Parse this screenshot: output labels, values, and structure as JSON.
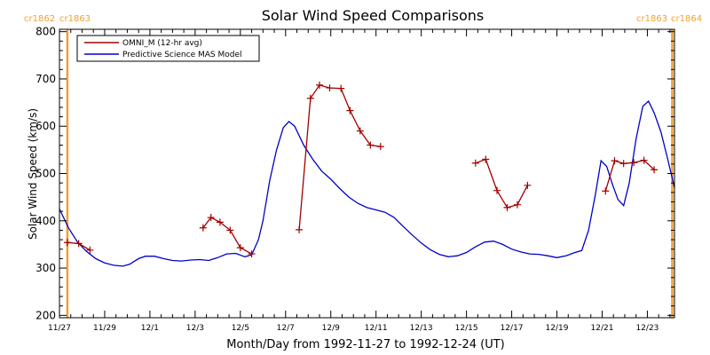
{
  "chart_data": {
    "type": "line",
    "title": "Solar Wind Speed Comparisons",
    "xlabel": "Month/Day from 1992-11-27 to 1992-12-24 (UT)",
    "ylabel": "Solar Wind Speed (km/s)",
    "xlim": [
      0,
      27.2
    ],
    "ylim": [
      195,
      805
    ],
    "yticks": [
      200,
      300,
      400,
      500,
      600,
      700,
      800
    ],
    "xticks": [
      {
        "x": 0,
        "label": "11/27"
      },
      {
        "x": 2,
        "label": "11/29"
      },
      {
        "x": 4,
        "label": "12/1"
      },
      {
        "x": 6,
        "label": "12/3"
      },
      {
        "x": 8,
        "label": "12/5"
      },
      {
        "x": 10,
        "label": "12/7"
      },
      {
        "x": 12,
        "label": "12/9"
      },
      {
        "x": 14,
        "label": "12/11"
      },
      {
        "x": 16,
        "label": "12/13"
      },
      {
        "x": 18,
        "label": "12/15"
      },
      {
        "x": 20,
        "label": "12/17"
      },
      {
        "x": 22,
        "label": "12/19"
      },
      {
        "x": 24,
        "label": "12/21"
      },
      {
        "x": 26,
        "label": "12/23"
      }
    ],
    "rotation_markers": [
      {
        "x": 0.35,
        "left_label": "cr1862",
        "right_label": "cr1863"
      },
      {
        "x": 27.1,
        "left_label": "cr1863",
        "right_label": "cr1864"
      }
    ],
    "legend": {
      "position": "top-left"
    },
    "colors": {
      "omni": "#a00000",
      "mas": "#0000cc",
      "rotation": "#f0a030"
    },
    "series": [
      {
        "name": "OMNI_M (12-hr avg)",
        "marker": "plus",
        "segments": [
          [
            [
              0.35,
              354
            ],
            [
              0.85,
              352
            ],
            [
              1.35,
              338
            ]
          ],
          [
            [
              6.35,
              385
            ],
            [
              6.7,
              407
            ],
            [
              7.1,
              397
            ],
            [
              7.55,
              380
            ],
            [
              8.0,
              343
            ],
            [
              8.5,
              330
            ]
          ],
          [
            [
              10.6,
              381
            ],
            [
              11.1,
              659
            ],
            [
              11.5,
              687
            ],
            [
              11.95,
              681
            ],
            [
              12.45,
              680
            ],
            [
              12.85,
              633
            ],
            [
              13.3,
              590
            ],
            [
              13.75,
              560
            ],
            [
              14.2,
              557
            ]
          ],
          [
            [
              18.4,
              522
            ],
            [
              18.85,
              530
            ],
            [
              19.35,
              464
            ],
            [
              19.8,
              428
            ],
            [
              20.25,
              434
            ],
            [
              20.7,
              475
            ]
          ],
          [
            [
              24.15,
              463
            ],
            [
              24.55,
              527
            ],
            [
              24.95,
              521
            ],
            [
              25.4,
              523
            ],
            [
              25.85,
              528
            ],
            [
              26.3,
              508
            ]
          ]
        ]
      },
      {
        "name": "Predictive Science MAS Model",
        "marker": "none",
        "points": [
          [
            0.0,
            425
          ],
          [
            0.4,
            385
          ],
          [
            0.8,
            355
          ],
          [
            1.2,
            335
          ],
          [
            1.6,
            320
          ],
          [
            2.0,
            311
          ],
          [
            2.4,
            306
          ],
          [
            2.8,
            304
          ],
          [
            3.1,
            308
          ],
          [
            3.5,
            320
          ],
          [
            3.8,
            325
          ],
          [
            4.2,
            325
          ],
          [
            4.6,
            320
          ],
          [
            5.0,
            316
          ],
          [
            5.4,
            315
          ],
          [
            5.8,
            317
          ],
          [
            6.2,
            318
          ],
          [
            6.6,
            316
          ],
          [
            7.0,
            322
          ],
          [
            7.4,
            330
          ],
          [
            7.8,
            331
          ],
          [
            8.2,
            324
          ],
          [
            8.5,
            328
          ],
          [
            8.8,
            360
          ],
          [
            9.0,
            400
          ],
          [
            9.3,
            485
          ],
          [
            9.6,
            550
          ],
          [
            9.9,
            597
          ],
          [
            10.15,
            610
          ],
          [
            10.4,
            600
          ],
          [
            10.8,
            560
          ],
          [
            11.2,
            530
          ],
          [
            11.6,
            505
          ],
          [
            12.0,
            488
          ],
          [
            12.4,
            468
          ],
          [
            12.8,
            450
          ],
          [
            13.2,
            437
          ],
          [
            13.6,
            428
          ],
          [
            14.0,
            423
          ],
          [
            14.4,
            418
          ],
          [
            14.8,
            407
          ],
          [
            15.2,
            388
          ],
          [
            15.6,
            370
          ],
          [
            16.0,
            353
          ],
          [
            16.4,
            339
          ],
          [
            16.8,
            329
          ],
          [
            17.2,
            324
          ],
          [
            17.6,
            326
          ],
          [
            18.0,
            333
          ],
          [
            18.4,
            345
          ],
          [
            18.8,
            355
          ],
          [
            19.2,
            357
          ],
          [
            19.6,
            350
          ],
          [
            20.0,
            340
          ],
          [
            20.4,
            334
          ],
          [
            20.8,
            330
          ],
          [
            21.2,
            329
          ],
          [
            21.6,
            326
          ],
          [
            22.0,
            322
          ],
          [
            22.4,
            326
          ],
          [
            22.8,
            333
          ],
          [
            23.1,
            337
          ],
          [
            23.4,
            380
          ],
          [
            23.7,
            455
          ],
          [
            23.95,
            527
          ],
          [
            24.2,
            515
          ],
          [
            24.45,
            478
          ],
          [
            24.7,
            445
          ],
          [
            24.95,
            432
          ],
          [
            25.2,
            480
          ],
          [
            25.5,
            573
          ],
          [
            25.8,
            642
          ],
          [
            26.05,
            653
          ],
          [
            26.3,
            628
          ],
          [
            26.6,
            588
          ],
          [
            26.9,
            530
          ],
          [
            27.2,
            470
          ]
        ]
      }
    ]
  }
}
